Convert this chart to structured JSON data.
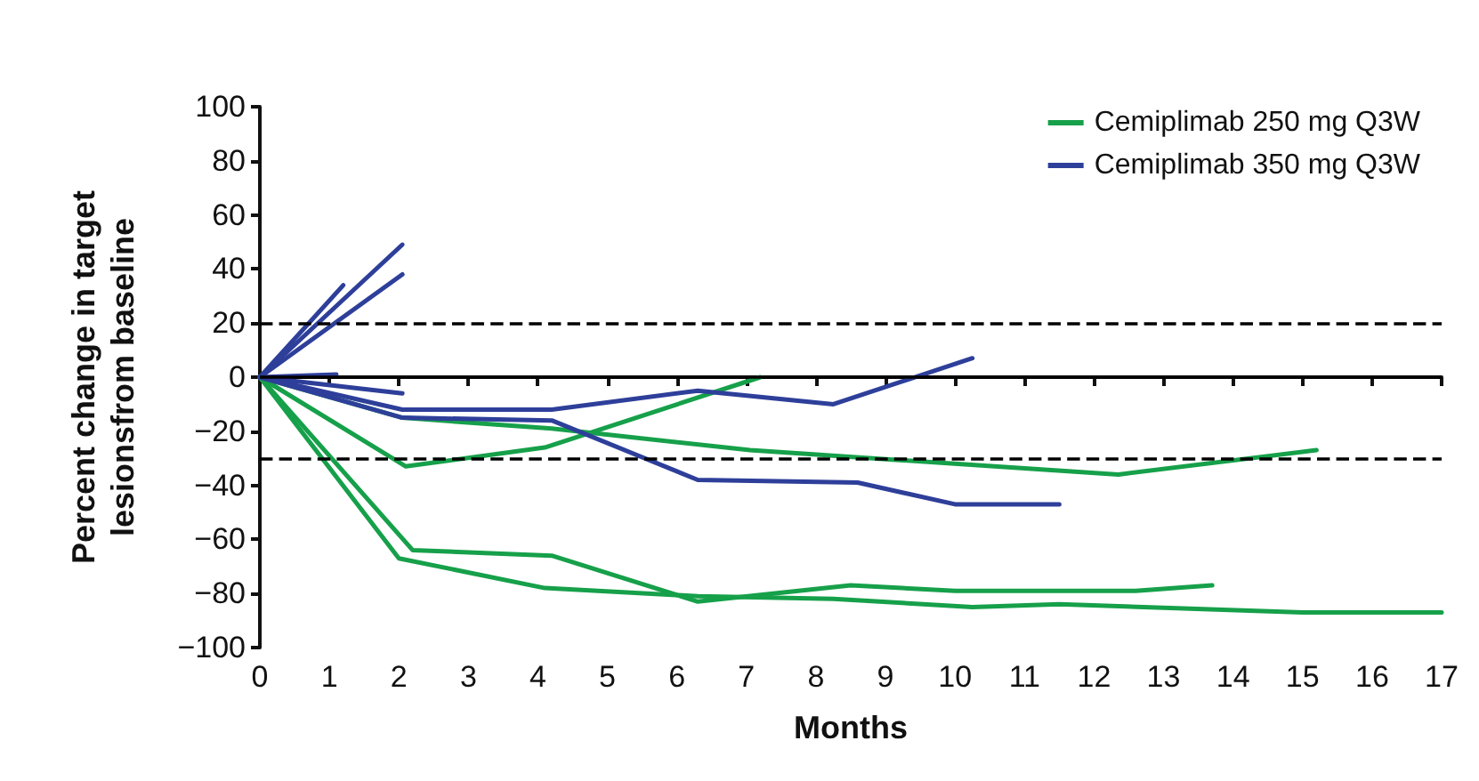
{
  "chart_data": {
    "type": "line",
    "xlabel": "Months",
    "ylabel": "Percent change in target\nlesionsfrom baseline",
    "xlim": [
      0,
      17
    ],
    "xticks": [
      0,
      1,
      2,
      3,
      4,
      5,
      6,
      7,
      8,
      9,
      10,
      11,
      12,
      13,
      14,
      15,
      16,
      17
    ],
    "ylim": [
      -100,
      100
    ],
    "yticks": [
      -100,
      -80,
      -60,
      -40,
      -20,
      0,
      20,
      40,
      60,
      80,
      100
    ],
    "grid": false,
    "legend": "top right",
    "marker": "none",
    "line_style": "solid",
    "ref_lines": [
      {
        "axis": "y",
        "value": 20,
        "line_style": "dashed",
        "color": "#000000"
      },
      {
        "axis": "y",
        "value": 0,
        "line_style": "solid",
        "color": "#000000"
      },
      {
        "axis": "y",
        "value": -30,
        "line_style": "dashed",
        "color": "#000000"
      }
    ],
    "series": [
      {
        "name": "Cemiplimab 250 mg Q3W",
        "color": "#16a04a",
        "x": [
          0,
          2.1,
          4.1,
          7.2
        ],
        "values": [
          0,
          -33,
          -26,
          0
        ]
      },
      {
        "color": "#16a04a",
        "x": [
          0,
          2.05,
          4.2,
          7.05,
          12.35,
          15.2
        ],
        "values": [
          0,
          -15,
          -19,
          -27,
          -36,
          -27
        ]
      },
      {
        "color": "#16a04a",
        "x": [
          0,
          2.2,
          4.2,
          6.3,
          8.5,
          10,
          12.6,
          13.7
        ],
        "values": [
          0,
          -64,
          -66,
          -83,
          -77,
          -79,
          -79,
          -77
        ]
      },
      {
        "color": "#16a04a",
        "x": [
          0,
          2,
          4.1,
          6.3,
          8.25,
          10.25,
          11.5,
          15,
          17
        ],
        "values": [
          0,
          -67,
          -78,
          -81,
          -82,
          -85,
          -84,
          -87,
          -87
        ]
      },
      {
        "name": "Cemiplimab 350 mg Q3W",
        "color": "#2e3f9a",
        "x": [
          0,
          1.2
        ],
        "values": [
          0,
          34
        ]
      },
      {
        "color": "#2e3f9a",
        "x": [
          0,
          2.05
        ],
        "values": [
          0,
          49
        ]
      },
      {
        "color": "#2e3f9a",
        "x": [
          0,
          2.05
        ],
        "values": [
          0,
          38
        ]
      },
      {
        "color": "#2e3f9a",
        "x": [
          0,
          1.1
        ],
        "values": [
          0,
          1
        ]
      },
      {
        "color": "#2e3f9a",
        "x": [
          0,
          2.05
        ],
        "values": [
          0,
          -6
        ]
      },
      {
        "color": "#2e3f9a",
        "x": [
          0,
          2.05,
          4.2,
          6.3,
          8.25,
          10.25
        ],
        "values": [
          0,
          -12,
          -12,
          -5,
          -10,
          7
        ]
      },
      {
        "color": "#2e3f9a",
        "x": [
          0,
          2.05,
          4.2,
          6.3,
          8.6,
          10,
          11.5
        ],
        "values": [
          0,
          -15,
          -16,
          -38,
          -39,
          -47,
          -47
        ]
      }
    ]
  }
}
